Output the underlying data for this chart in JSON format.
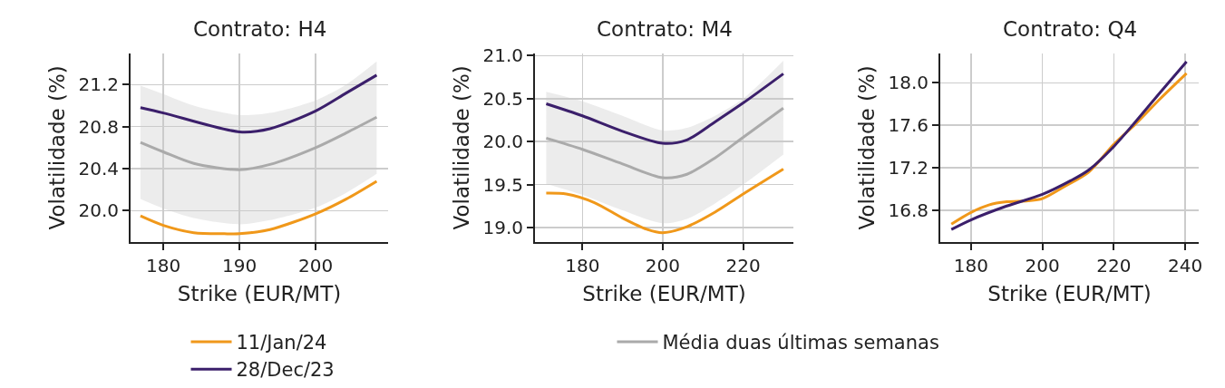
{
  "chart_data": [
    {
      "type": "line",
      "title": "Contrato: H4",
      "xlabel": "Strike (EUR/MT)",
      "ylabel": "Volatilidade (%)",
      "legend": "bottom",
      "grid": true,
      "xlim": [
        175.7,
        209.5
      ],
      "xticks": [
        180,
        190,
        200
      ],
      "ylim": [
        19.7,
        21.5
      ],
      "yticks": [
        {
          "value": 20.0,
          "label": "20.0"
        },
        {
          "value": 20.4,
          "label": "20.4"
        },
        {
          "value": 20.8,
          "label": "20.8"
        },
        {
          "value": 21.2,
          "label": "21.2"
        }
      ],
      "series": [
        {
          "name": "11/Jan/24",
          "color": "#f0981a",
          "x": [
            177,
            180,
            184,
            188,
            190,
            194,
            200,
            204,
            208
          ],
          "values": [
            19.95,
            19.86,
            19.79,
            19.78,
            19.78,
            19.82,
            19.97,
            20.11,
            20.28
          ]
        },
        {
          "name": "Média duas últimas semanas",
          "color": "#aaaaaa",
          "x": [
            177,
            180,
            184,
            190,
            194,
            200,
            204,
            208
          ],
          "values": [
            20.65,
            20.56,
            20.45,
            20.39,
            20.44,
            20.6,
            20.74,
            20.89
          ],
          "lower": [
            20.11,
            20.02,
            19.93,
            19.87,
            19.91,
            20.03,
            20.17,
            20.35
          ],
          "upper": [
            21.19,
            21.11,
            21.0,
            20.91,
            20.93,
            21.05,
            21.2,
            21.42
          ]
        },
        {
          "name": "28/Dec/23",
          "color": "#3b1f6b",
          "x": [
            177,
            180,
            190,
            194,
            200,
            204,
            208
          ],
          "values": [
            20.98,
            20.93,
            20.75,
            20.78,
            20.95,
            21.12,
            21.29
          ]
        }
      ]
    },
    {
      "type": "line",
      "title": "Contrato: M4",
      "xlabel": "Strike (EUR/MT)",
      "ylabel": "Volatilidade (%)",
      "grid": true,
      "xlim": [
        168.2,
        232.5
      ],
      "xticks": [
        180,
        200,
        220
      ],
      "ylim": [
        18.83,
        21.03
      ],
      "yticks": [
        {
          "value": 19.0,
          "label": "19.0"
        },
        {
          "value": 19.5,
          "label": "19.5"
        },
        {
          "value": 20.0,
          "label": "20.0"
        },
        {
          "value": 20.5,
          "label": "20.5"
        },
        {
          "value": 21.0,
          "label": "21.0"
        }
      ],
      "series": [
        {
          "name": "11/Jan/24",
          "color": "#f0981a",
          "x": [
            171,
            176,
            183,
            190,
            196,
            200,
            206,
            213,
            220,
            230
          ],
          "values": [
            19.4,
            19.39,
            19.29,
            19.11,
            18.98,
            18.94,
            19.01,
            19.18,
            19.39,
            19.68
          ]
        },
        {
          "name": "Média duas últimas semanas",
          "color": "#aaaaaa",
          "x": [
            171,
            180,
            190,
            200,
            206,
            213,
            220,
            230
          ],
          "values": [
            20.04,
            19.91,
            19.74,
            19.58,
            19.62,
            19.81,
            20.05,
            20.39
          ],
          "lower": [
            19.51,
            19.38,
            19.2,
            19.05,
            19.1,
            19.28,
            19.5,
            19.85
          ],
          "upper": [
            20.58,
            20.47,
            20.3,
            20.13,
            20.16,
            20.3,
            20.5,
            20.94
          ]
        },
        {
          "name": "28/Dec/23",
          "color": "#3b1f6b",
          "x": [
            171,
            180,
            190,
            200,
            206,
            213,
            220,
            230
          ],
          "values": [
            20.44,
            20.3,
            20.12,
            19.98,
            20.02,
            20.23,
            20.45,
            20.79
          ]
        }
      ]
    },
    {
      "type": "line",
      "title": "Contrato: Q4",
      "xlabel": "Strike (EUR/MT)",
      "ylabel": "Volatilidade (%)",
      "grid": true,
      "xlim": [
        171.4,
        243.8
      ],
      "xticks": [
        180,
        200,
        220,
        240
      ],
      "ylim": [
        16.5,
        18.28
      ],
      "yticks": [
        {
          "value": 16.8,
          "label": "16.8"
        },
        {
          "value": 17.2,
          "label": "17.2"
        },
        {
          "value": 17.6,
          "label": "17.6"
        },
        {
          "value": 18.0,
          "label": "18.0"
        }
      ],
      "series": [
        {
          "name": "11/Jan/24",
          "color": "#f0981a",
          "x": [
            174.5,
            180,
            185,
            190,
            196,
            200,
            206,
            213,
            220,
            226,
            233,
            240.4
          ],
          "values": [
            16.67,
            16.78,
            16.85,
            16.88,
            16.89,
            16.91,
            17.02,
            17.16,
            17.42,
            17.61,
            17.85,
            18.09
          ]
        },
        {
          "name": "28/Dec/23",
          "color": "#3b1f6b",
          "x": [
            174.5,
            180,
            190,
            200,
            208,
            213,
            220,
            226,
            233,
            240.4
          ],
          "values": [
            16.62,
            16.71,
            16.84,
            16.95,
            17.08,
            17.18,
            17.4,
            17.63,
            17.91,
            18.2
          ]
        }
      ]
    }
  ]
}
